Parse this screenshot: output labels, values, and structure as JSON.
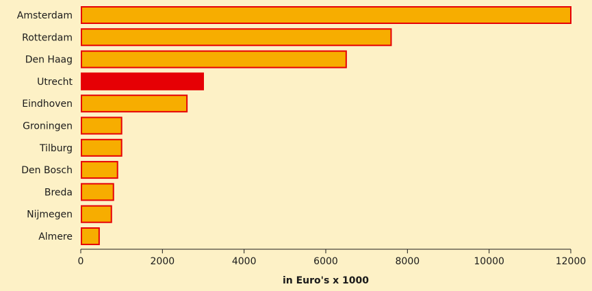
{
  "colors": {
    "background": "#fdf1c6",
    "bar_fill": "#f7ad00",
    "bar_stroke": "#e60005",
    "highlight_fill": "#e60005",
    "axis": "#1a1a1a"
  },
  "chart_data": {
    "type": "bar",
    "orientation": "horizontal",
    "categories": [
      "Amsterdam",
      "Rotterdam",
      "Den Haag",
      "Utrecht",
      "Eindhoven",
      "Groningen",
      "Tilburg",
      "Den Bosch",
      "Breda",
      "Nijmegen",
      "Almere"
    ],
    "values": [
      12000,
      7600,
      6500,
      3000,
      2600,
      1000,
      1000,
      900,
      800,
      750,
      450
    ],
    "highlight_category": "Utrecht",
    "xlabel": "in Euro's x 1000",
    "ylabel": "",
    "title": "",
    "xlim": [
      0,
      12000
    ],
    "xticks": [
      "0",
      "2000",
      "4000",
      "6000",
      "8000",
      "10000",
      "12000"
    ],
    "grid": false,
    "legend": "none"
  }
}
